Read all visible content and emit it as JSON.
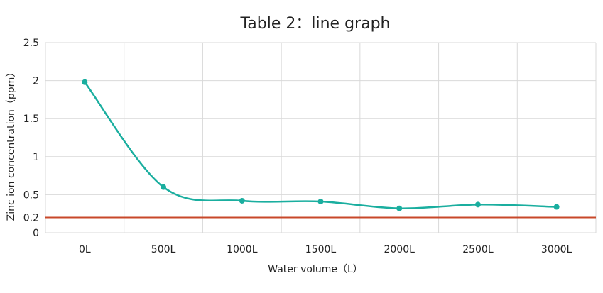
{
  "chart_data": {
    "type": "line",
    "title": "Table 2：line graph",
    "xlabel": "Water volume（L）",
    "ylabel": "Zinc ion concentration（ppm）",
    "categories": [
      "0L",
      "500L",
      "1000L",
      "1500L",
      "2000L",
      "2500L",
      "3000L"
    ],
    "series": [
      {
        "values": [
          1.98,
          0.6,
          0.42,
          0.41,
          0.32,
          0.37,
          0.34
        ],
        "color": "#1aae9f"
      }
    ],
    "reference_line": {
      "value": 0.2,
      "color": "#c8482a"
    },
    "yticks": [
      0,
      0.2,
      0.5,
      1,
      1.5,
      2,
      2.5
    ],
    "ylim": [
      0,
      2.5
    ],
    "grid": true,
    "grid_color": "#d9d9d9"
  }
}
